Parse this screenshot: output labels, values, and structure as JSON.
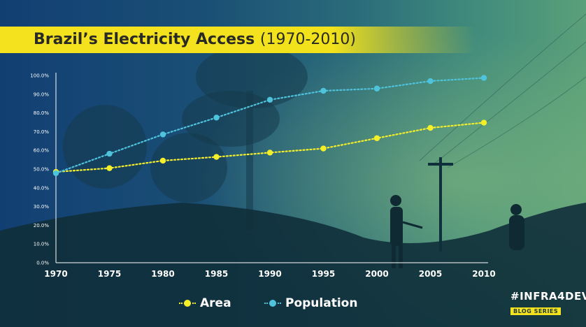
{
  "title": {
    "main": "Brazil’s Electricity Access",
    "years": "(1970-2010)"
  },
  "brand": {
    "name": "#INFRA4DEV",
    "sub": "BLOG SERIES"
  },
  "colors": {
    "area": "#f5ef2a",
    "population": "#4fc3dc",
    "axis": "#ffffff",
    "title_bar": "#f5e21f"
  },
  "chart_data": {
    "type": "line",
    "title": "Brazil’s Electricity Access (1970-2010)",
    "xlabel": "",
    "ylabel": "",
    "x": [
      1970,
      1975,
      1980,
      1985,
      1990,
      1995,
      2000,
      2005,
      2010
    ],
    "ylim": [
      0,
      100
    ],
    "yticks": [
      "0.0%",
      "10.0%",
      "20.0%",
      "30.0%",
      "40.0%",
      "50.0%",
      "60.0%",
      "70.0%",
      "80.0%",
      "90.0%",
      "100.0%"
    ],
    "grid": false,
    "legend": "bottom",
    "series": [
      {
        "name": "Area",
        "color": "#f5ef2a",
        "values": [
          48.5,
          50.5,
          54.5,
          56.5,
          58.8,
          61.0,
          66.5,
          72.0,
          74.8
        ]
      },
      {
        "name": "Population",
        "color": "#4fc3dc",
        "values": [
          47.8,
          58.2,
          68.5,
          77.5,
          87.0,
          91.8,
          93.0,
          97.0,
          98.7
        ]
      }
    ]
  }
}
